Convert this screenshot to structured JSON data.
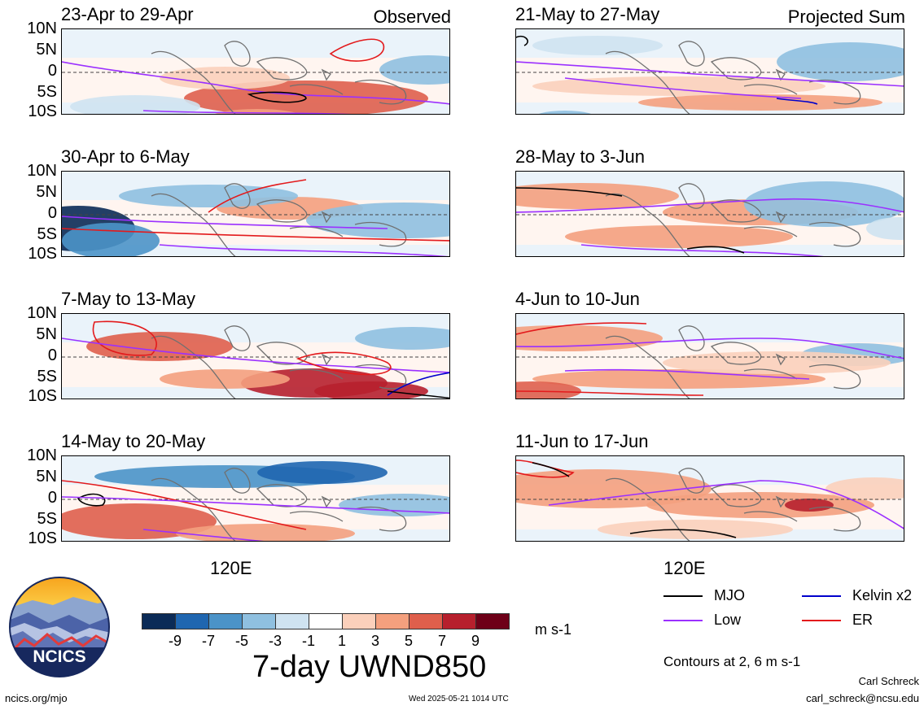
{
  "panels_left": [
    {
      "title": "23-Apr to 29-Apr",
      "tag": "Observed"
    },
    {
      "title": "30-Apr to 6-May",
      "tag": ""
    },
    {
      "title": "7-May to 13-May",
      "tag": ""
    },
    {
      "title": "14-May to 20-May",
      "tag": ""
    }
  ],
  "panels_right": [
    {
      "title": "21-May to 27-May",
      "tag": "Projected Sum"
    },
    {
      "title": "28-May to 3-Jun",
      "tag": ""
    },
    {
      "title": "4-Jun to 10-Jun",
      "tag": ""
    },
    {
      "title": "11-Jun to 17-Jun",
      "tag": ""
    }
  ],
  "lat_labels": [
    "10N",
    "5N",
    "0",
    "5S",
    "10S"
  ],
  "lon_label": "120E",
  "colorbar": {
    "ticks": [
      "-9",
      "-7",
      "-5",
      "-3",
      "-1",
      "1",
      "3",
      "5",
      "7",
      "9"
    ],
    "colors": [
      "#0b2b57",
      "#1f66b0",
      "#4b93c8",
      "#8fc0e0",
      "#cfe3f1",
      "#ffffff",
      "#fbd0bb",
      "#f4a07e",
      "#df5f4c",
      "#b7202d",
      "#6e0018"
    ],
    "units": "m s-1",
    "title": "7-day UWND850"
  },
  "legend": {
    "mjo": "MJO",
    "low": "Low",
    "kelvin": "Kelvin x2",
    "er": "ER",
    "note": "Contours at 2, 6 m s-1",
    "colors": {
      "mjo": "#000000",
      "low": "#9b30ff",
      "kelvin": "#0000cc",
      "er": "#e31a1c"
    }
  },
  "footer": {
    "logo_text": "NCICS",
    "url": "ncics.org/mjo",
    "timestamp": "Wed 2025-05-21 1014 UTC",
    "author": "Carl Schreck",
    "email": "carl_schreck@ncsu.edu"
  }
}
